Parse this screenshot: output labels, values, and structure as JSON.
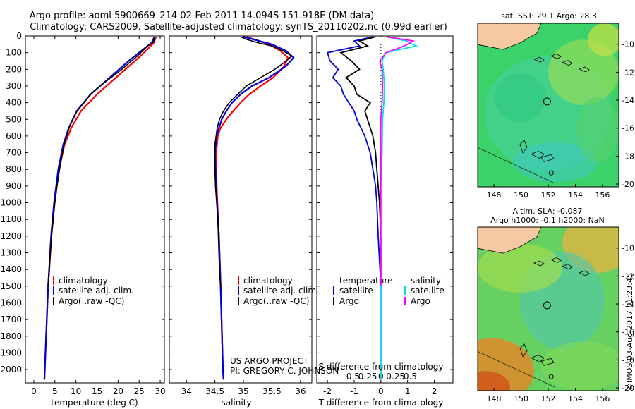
{
  "header": {
    "line1": "Argo profile: aoml 5900669_214 02-Feb-2011 14.094S 151.918E (DM data)",
    "line2": "Climatology: CARS2009. Satellite-adjusted climatology: synTS_20110202.nc (0.99d earlier)"
  },
  "credits": {
    "project": "US ARGO PROJECT",
    "pi": "PI: GREGORY C. JOHNSON",
    "watermark": "©IMOS 03-Aug-2017 01:23:45"
  },
  "colors": {
    "climatology": "#ff0000",
    "satellite": "#0000dd",
    "argo": "#000000",
    "sal_satellite": "#00e0f0",
    "sal_argo": "#ff00ff"
  },
  "chart_data": [
    {
      "type": "line",
      "name": "temperature-panel",
      "xlabel": "temperature (deg C)",
      "ylabel": "",
      "xlim": [
        -2,
        31
      ],
      "ylim": [
        2080,
        0
      ],
      "xticks": [
        0,
        5,
        10,
        15,
        20,
        25,
        30
      ],
      "yticks": [
        0,
        100,
        200,
        300,
        400,
        500,
        600,
        700,
        800,
        900,
        1000,
        1100,
        1200,
        1300,
        1400,
        1500,
        1600,
        1700,
        1800,
        1900,
        2000
      ],
      "legend": [
        "climatology",
        "satellite-adj. clim.",
        "Argo(..raw -QC)"
      ],
      "series": [
        {
          "name": "climatology",
          "depth": [
            5,
            40,
            80,
            150,
            250,
            350,
            450,
            550,
            650,
            800,
            1000,
            1200,
            1500,
            2000,
            2060
          ],
          "values": [
            29.0,
            28.5,
            27.0,
            24.0,
            19.5,
            15.0,
            11.2,
            8.9,
            7.3,
            6.0,
            4.9,
            4.2,
            3.4,
            2.6,
            2.5
          ]
        },
        {
          "name": "satellite",
          "depth": [
            5,
            40,
            80,
            150,
            250,
            350,
            450,
            550,
            650,
            800,
            1000,
            1200,
            1500,
            2000,
            2060
          ],
          "values": [
            28.6,
            28.0,
            26.0,
            22.5,
            18.0,
            13.5,
            10.2,
            8.3,
            7.0,
            5.8,
            4.8,
            4.1,
            3.4,
            2.6,
            2.5
          ]
        },
        {
          "name": "argo",
          "depth": [
            5,
            20,
            40,
            60,
            80,
            120,
            160,
            200,
            250,
            300,
            350,
            400,
            450,
            500,
            550,
            600,
            650,
            700,
            800,
            900,
            1000,
            1100,
            1200,
            1300,
            1400,
            1500
          ],
          "values": [
            28.8,
            28.6,
            28.3,
            27.0,
            26.2,
            24.6,
            22.7,
            20.9,
            18.3,
            15.7,
            13.4,
            11.9,
            10.3,
            9.2,
            8.4,
            7.8,
            7.2,
            6.8,
            6.1,
            5.5,
            5.0,
            4.6,
            4.2,
            3.9,
            3.7,
            3.4
          ]
        }
      ]
    },
    {
      "type": "line",
      "name": "salinity-panel",
      "xlabel": "salinity",
      "xlim": [
        33.7,
        36.2
      ],
      "ylim": [
        2080,
        0
      ],
      "xticks": [
        34,
        34.5,
        35,
        35.5,
        36
      ],
      "legend": [
        "climatology",
        "satellite-adj. clim.",
        "Argo(..raw -QC)"
      ],
      "series": [
        {
          "name": "climatology",
          "depth": [
            5,
            50,
            90,
            130,
            180,
            250,
            300,
            350,
            400,
            450,
            500,
            550,
            600,
            700,
            900,
            1200,
            1500,
            2000,
            2060
          ],
          "values": [
            35.05,
            35.45,
            35.65,
            35.78,
            35.72,
            35.52,
            35.3,
            35.1,
            34.95,
            34.82,
            34.7,
            34.6,
            34.55,
            34.52,
            34.53,
            34.57,
            34.6,
            34.64,
            34.65
          ]
        },
        {
          "name": "satellite",
          "depth": [
            5,
            50,
            90,
            130,
            180,
            250,
            300,
            350,
            400,
            450,
            500,
            550,
            600,
            700,
            900,
            1200,
            1500,
            2000,
            2060
          ],
          "values": [
            35.0,
            35.5,
            35.75,
            35.88,
            35.75,
            35.45,
            35.15,
            34.95,
            34.8,
            34.7,
            34.62,
            34.57,
            34.53,
            34.5,
            34.52,
            34.57,
            34.6,
            34.64,
            34.65
          ]
        },
        {
          "name": "argo",
          "depth": [
            5,
            20,
            40,
            60,
            90,
            120,
            150,
            200,
            250,
            300,
            350,
            400,
            450,
            500,
            550,
            600,
            650,
            700,
            800,
            900,
            1000,
            1100,
            1200,
            1300,
            1400,
            1500
          ],
          "values": [
            34.95,
            35.05,
            35.25,
            35.5,
            35.7,
            35.85,
            35.75,
            35.55,
            35.3,
            35.05,
            34.9,
            34.75,
            34.65,
            34.58,
            34.54,
            34.52,
            34.5,
            34.5,
            34.5,
            34.51,
            34.53,
            34.55,
            34.56,
            34.57,
            34.58,
            34.6
          ]
        }
      ]
    },
    {
      "type": "line",
      "name": "difference-panel",
      "xlabel_top": "S difference from climatology",
      "xlabel": "T difference from climatology",
      "xlim": [
        -2.4,
        2.7
      ],
      "ylim": [
        2080,
        0
      ],
      "xticks_t": [
        -2,
        -1,
        0,
        1,
        2
      ],
      "xticks_s_labels": [
        "-0.5",
        "-0.25",
        "0",
        "0.25",
        "0.5"
      ],
      "legend_t_title": "temperature",
      "legend_s_title": "salinity",
      "legend": [
        "satellite",
        "Argo",
        "satellite",
        "Argo"
      ],
      "series": [
        {
          "name": "T satellite",
          "depth": [
            5,
            30,
            60,
            100,
            150,
            200,
            250,
            300,
            350,
            400,
            450,
            500,
            600,
            700,
            800,
            900,
            1000,
            1200,
            1500,
            2000,
            2060
          ],
          "values": [
            -0.3,
            -1.0,
            -0.8,
            -2.0,
            -1.9,
            -1.6,
            -1.8,
            -1.5,
            -1.4,
            -1.2,
            -1.0,
            -0.9,
            -0.6,
            -0.4,
            -0.3,
            -0.2,
            -0.15,
            -0.1,
            0.0,
            0.0,
            0.0
          ]
        },
        {
          "name": "T Argo",
          "depth": [
            5,
            30,
            60,
            100,
            150,
            200,
            250,
            300,
            350,
            400,
            450,
            500,
            600,
            700,
            800,
            900,
            1000,
            1200,
            1500
          ],
          "values": [
            -0.2,
            -0.8,
            -0.5,
            -1.5,
            -1.1,
            -0.8,
            -1.3,
            -1.0,
            -0.9,
            -0.4,
            -0.6,
            -0.5,
            -0.3,
            -0.2,
            -0.15,
            -0.1,
            -0.05,
            0.0,
            0.0
          ]
        },
        {
          "name": "S satellite",
          "depth": [
            5,
            30,
            60,
            100,
            150,
            200,
            300,
            400,
            500,
            700,
            900,
            1200,
            1500,
            2000,
            2060
          ],
          "values": [
            0.1,
            0.43,
            0.6,
            0.08,
            0.02,
            0.04,
            0.06,
            0.05,
            0.03,
            0.02,
            0.0,
            0.0,
            0.0,
            0.0,
            0.0
          ]
        },
        {
          "name": "S Argo",
          "depth": [
            5,
            30,
            60,
            100,
            150,
            200,
            300,
            400,
            500,
            700,
            900,
            1200,
            1500
          ],
          "values": [
            0.1,
            0.55,
            0.4,
            0.09,
            -0.02,
            0.02,
            0.03,
            0.02,
            0.0,
            0.0,
            0.0,
            0.0,
            0.0
          ]
        }
      ]
    },
    {
      "type": "heatmap",
      "name": "sst-map",
      "title": "sat. SST: 29.1 Argo: 28.3",
      "xticks": [
        148,
        150,
        152,
        154,
        156
      ],
      "yticks": [
        -10,
        -12,
        -14,
        -16,
        -18,
        -20
      ],
      "xlim": [
        146.8,
        157.2
      ],
      "ylim": [
        -20.2,
        -8.5
      ],
      "profile_lon": 151.918,
      "profile_lat": -14.094
    },
    {
      "type": "heatmap",
      "name": "sla-map",
      "title_line1": "Altim. SLA: -0.087",
      "title_line2": "Argo h1000: -0.1 h2000: NaN",
      "xticks": [
        148,
        150,
        152,
        154,
        156
      ],
      "yticks": [
        -10,
        -12,
        -14,
        -16,
        -18,
        -20
      ],
      "xlim": [
        146.8,
        157.2
      ],
      "ylim": [
        -20.2,
        -8.5
      ],
      "profile_lon": 151.918,
      "profile_lat": -14.094
    }
  ]
}
